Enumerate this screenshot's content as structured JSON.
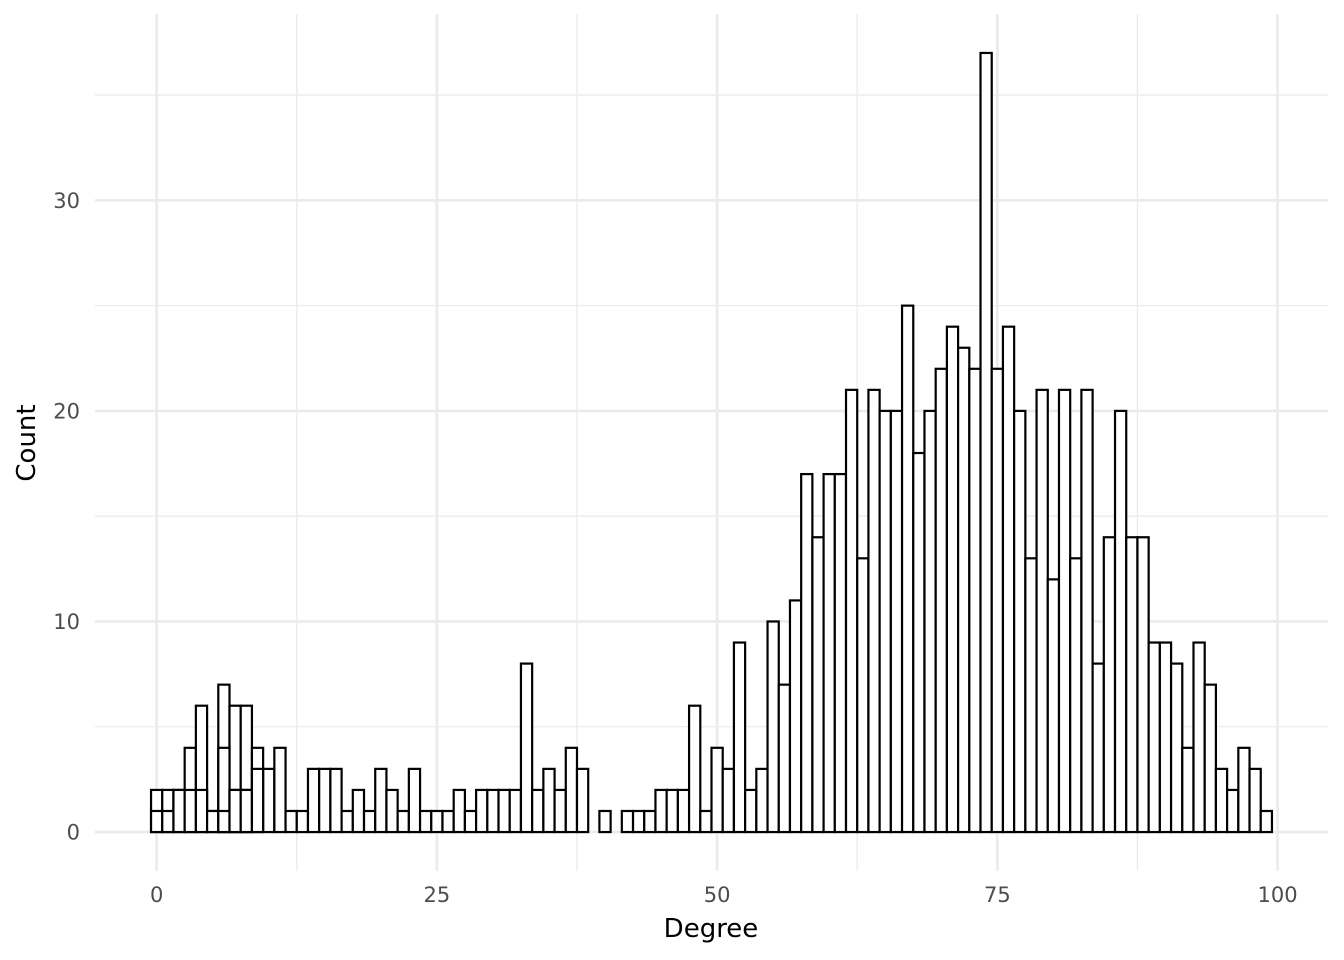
{
  "chart_data": {
    "type": "bar",
    "xlabel": "Degree",
    "ylabel": "Count",
    "xlim": [
      -5.5,
      104.5
    ],
    "ylim": [
      -1.85,
      38.85
    ],
    "x_ticks": [
      0,
      25,
      50,
      75,
      100
    ],
    "y_ticks": [
      0,
      10,
      20,
      30
    ],
    "grid": true,
    "bar_fill": "#ffffff",
    "bar_stroke": "#000000",
    "bin_width": 1,
    "layers": [
      {
        "name": "",
        "x": [
          0,
          1,
          2,
          3,
          4,
          5,
          6,
          7,
          8,
          9,
          10,
          11,
          12,
          13,
          14,
          15,
          16,
          17,
          18,
          19,
          20,
          21,
          22,
          23,
          24,
          25,
          26,
          27,
          28,
          29,
          30,
          31,
          32,
          33,
          34,
          35,
          36,
          37,
          38,
          39,
          40,
          41,
          42,
          43,
          44,
          45,
          46,
          47,
          48,
          49,
          50,
          51,
          52,
          53,
          54,
          55,
          56,
          57,
          58,
          59,
          60,
          61,
          62,
          63,
          64,
          65,
          66,
          67,
          68,
          69,
          70,
          71,
          72,
          73,
          74,
          75,
          76,
          77,
          78,
          79,
          80,
          81,
          82,
          83,
          84,
          85,
          86,
          87,
          88,
          89,
          90,
          91,
          92,
          93,
          94,
          95,
          96,
          97,
          98,
          99
        ],
        "values": [
          2,
          2,
          2,
          4,
          6,
          1,
          7,
          6,
          6,
          4,
          3,
          4,
          1,
          1,
          3,
          3,
          3,
          1,
          2,
          1,
          3,
          2,
          1,
          3,
          1,
          1,
          1,
          2,
          1,
          2,
          2,
          2,
          2,
          8,
          2,
          3,
          2,
          4,
          3,
          0,
          1,
          0,
          1,
          1,
          1,
          2,
          2,
          2,
          6,
          1,
          4,
          3,
          9,
          2,
          3,
          10,
          7,
          11,
          17,
          14,
          17,
          17,
          21,
          13,
          21,
          20,
          20,
          25,
          18,
          20,
          22,
          24,
          23,
          22,
          37,
          22,
          24,
          20,
          13,
          21,
          12,
          21,
          13,
          21,
          8,
          14,
          20,
          14,
          14,
          9,
          9,
          8,
          4,
          9,
          7,
          3,
          2,
          4,
          3,
          1
        ]
      },
      {
        "name": "",
        "x": [
          0,
          1,
          2,
          3,
          4,
          5,
          6,
          7,
          8
        ],
        "values": [
          1,
          1,
          2,
          2,
          2,
          1,
          4,
          2,
          2
        ]
      },
      {
        "name": "",
        "x": [
          6,
          7,
          8,
          9
        ],
        "values": [
          1,
          2,
          2,
          3
        ]
      }
    ]
  }
}
